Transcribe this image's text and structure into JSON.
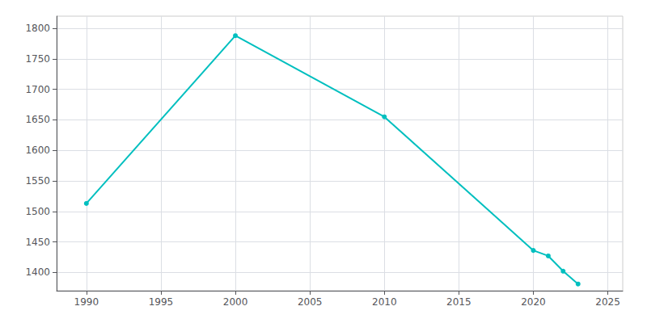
{
  "chart_data": {
    "type": "line",
    "x": [
      1990,
      2000,
      2010,
      2020,
      2021,
      2022,
      2023
    ],
    "values": [
      1513,
      1788,
      1655,
      1436,
      1427,
      1402,
      1381
    ],
    "color": "#00BFBF",
    "marker": "circle",
    "xlim": [
      1988,
      2026
    ],
    "xticks": [
      1990,
      1995,
      2000,
      2005,
      2010,
      2015,
      2020,
      2025
    ],
    "ylim": [
      1370,
      1820
    ],
    "yticks": [
      1400,
      1450,
      1500,
      1550,
      1600,
      1650,
      1700,
      1750,
      1800
    ],
    "grid": true
  }
}
